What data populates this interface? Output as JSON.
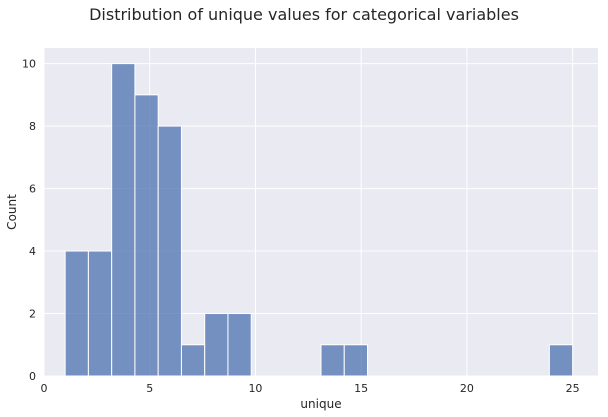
{
  "chart_data": {
    "type": "bar",
    "title": "Distribution of unique values for categorical variables",
    "xlabel": "unique",
    "ylabel": "Count",
    "xlim": [
      0,
      26.2
    ],
    "ylim": [
      0,
      10.5
    ],
    "xticks": [
      0,
      5,
      10,
      15,
      20,
      25
    ],
    "yticks": [
      0,
      2,
      4,
      6,
      8,
      10
    ],
    "grid": true,
    "bar_color": "#4c72b0",
    "background_color": "#eaeaf2",
    "bins": [
      {
        "x0": 1.0,
        "x1": 2.1,
        "count": 4
      },
      {
        "x0": 2.1,
        "x1": 3.2,
        "count": 4
      },
      {
        "x0": 3.2,
        "x1": 4.3,
        "count": 10
      },
      {
        "x0": 4.3,
        "x1": 5.4,
        "count": 9
      },
      {
        "x0": 5.4,
        "x1": 6.5,
        "count": 8
      },
      {
        "x0": 6.5,
        "x1": 7.6,
        "count": 1
      },
      {
        "x0": 7.6,
        "x1": 8.7,
        "count": 2
      },
      {
        "x0": 8.7,
        "x1": 9.8,
        "count": 2
      },
      {
        "x0": 13.1,
        "x1": 14.2,
        "count": 1
      },
      {
        "x0": 14.2,
        "x1": 15.3,
        "count": 1
      },
      {
        "x0": 23.9,
        "x1": 25.0,
        "count": 1
      }
    ]
  }
}
